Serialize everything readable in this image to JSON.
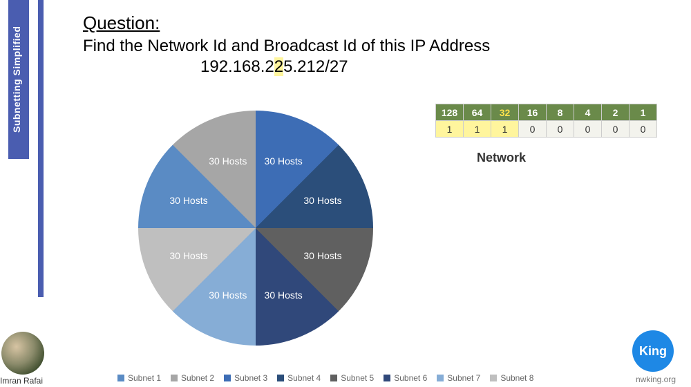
{
  "sidebar": {
    "tab_label": "Subnetting Simplified"
  },
  "question": {
    "title": "Question:",
    "text": "Find the Network Id and Broadcast Id of this IP Address",
    "ip_pre": "192.168.2",
    "ip_hl": "2",
    "ip_post": "5.212/27"
  },
  "pie": {
    "type": "pie",
    "slices": [
      {
        "label": "30 Hosts",
        "color": "#5a8bc4",
        "legend": "Subnet 1"
      },
      {
        "label": "30 Hosts",
        "color": "#a6a6a6",
        "legend": "Subnet 2"
      },
      {
        "label": "30 Hosts",
        "color": "#3d6db5",
        "legend": "Subnet 3"
      },
      {
        "label": "30 Hosts",
        "color": "#2b4e7a",
        "legend": "Subnet 4"
      },
      {
        "label": "30 Hosts",
        "color": "#606060",
        "legend": "Subnet 5"
      },
      {
        "label": "30 Hosts",
        "color": "#30487a",
        "legend": "Subnet 6"
      },
      {
        "label": "30 Hosts",
        "color": "#86add6",
        "legend": "Subnet 7"
      },
      {
        "label": "30 Hosts",
        "color": "#bfbfbf",
        "legend": "Subnet 8"
      }
    ],
    "label_color": "#ffffff",
    "label_fontsize": 14
  },
  "binary_table": {
    "headers": [
      "128",
      "64",
      "32",
      "16",
      "8",
      "4",
      "2",
      "1"
    ],
    "header_highlight_index": 2,
    "values": [
      "1",
      "1",
      "1",
      "0",
      "0",
      "0",
      "0",
      "0"
    ],
    "value_highlight_indices": [
      0,
      1,
      2
    ],
    "header_bg": "#6a8a4a",
    "header_fg": "#ffffff",
    "header_hl_fg": "#ffe24a",
    "value_bg": "#f3f3ed",
    "value_hl_bg": "#fff59d"
  },
  "network_label": "Network",
  "author": "Imran Rafai",
  "logo_text": "King",
  "logo_sub": "nwking.org"
}
